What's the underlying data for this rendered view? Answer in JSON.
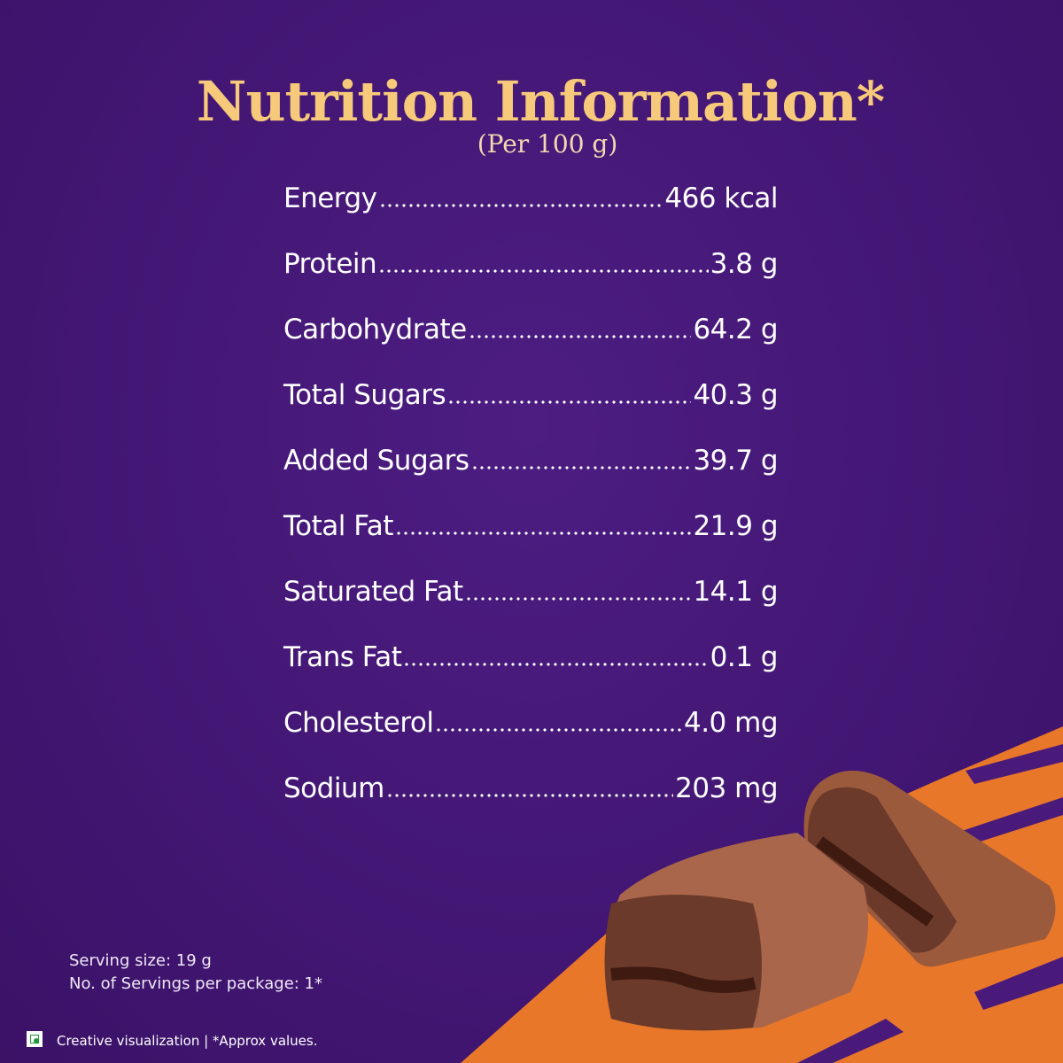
{
  "header": {
    "title": "Nutrition Information*",
    "subtitle": "(Per 100 g)"
  },
  "nutrients": [
    {
      "name": "Energy",
      "amount": "466 kcal"
    },
    {
      "name": "Protein",
      "amount": "3.8 g"
    },
    {
      "name": "Carbohydrate",
      "amount": "64.2 g"
    },
    {
      "name": "Total Sugars",
      "amount": "40.3 g"
    },
    {
      "name": "Added Sugars",
      "amount": "39.7 g"
    },
    {
      "name": "Total Fat",
      "amount": "21.9 g"
    },
    {
      "name": "Saturated Fat",
      "amount": "14.1 g"
    },
    {
      "name": "Trans Fat",
      "amount": "0.1 g"
    },
    {
      "name": "Cholesterol",
      "amount": "4.0 mg"
    },
    {
      "name": "Sodium",
      "amount": "203 mg"
    }
  ],
  "serving": {
    "size": "Serving size: 19 g",
    "count": "No. of Servings per package: 1*"
  },
  "footer": {
    "note": "Creative visualization | *Approx values."
  }
}
